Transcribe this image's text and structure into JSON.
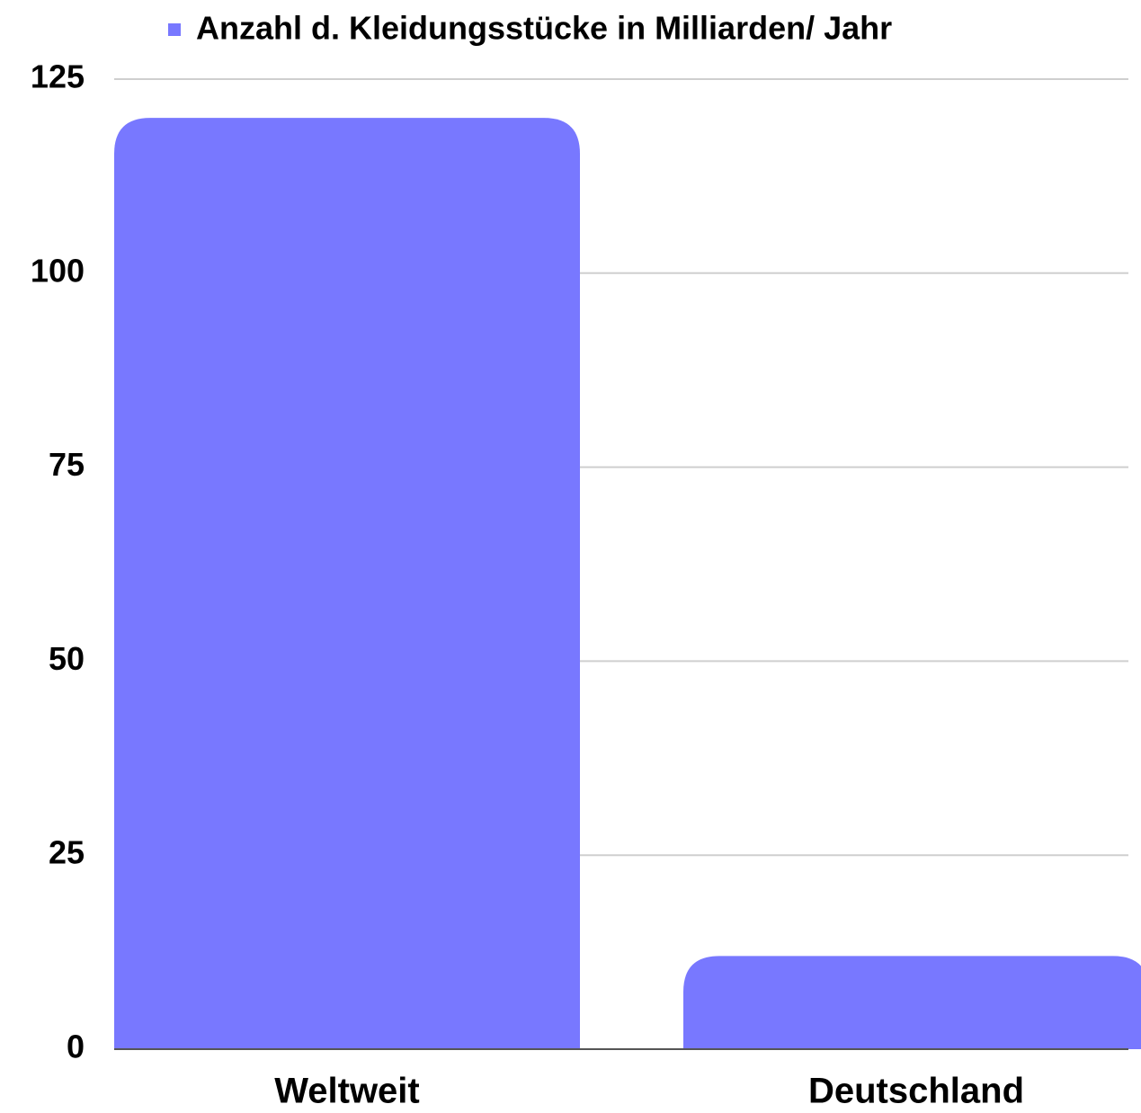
{
  "chart_data": {
    "type": "bar",
    "categories": [
      "Weltweit",
      "Deutschland"
    ],
    "series": [
      {
        "name": "Anzahl d. Kleidungsstücke in Milliarden/ Jahr",
        "color": "#7878ff",
        "values": [
          120,
          12
        ]
      }
    ],
    "ylim": [
      0,
      125
    ],
    "yticks": [
      0,
      25,
      50,
      75,
      100,
      125
    ],
    "grid": true,
    "legend": "top"
  }
}
